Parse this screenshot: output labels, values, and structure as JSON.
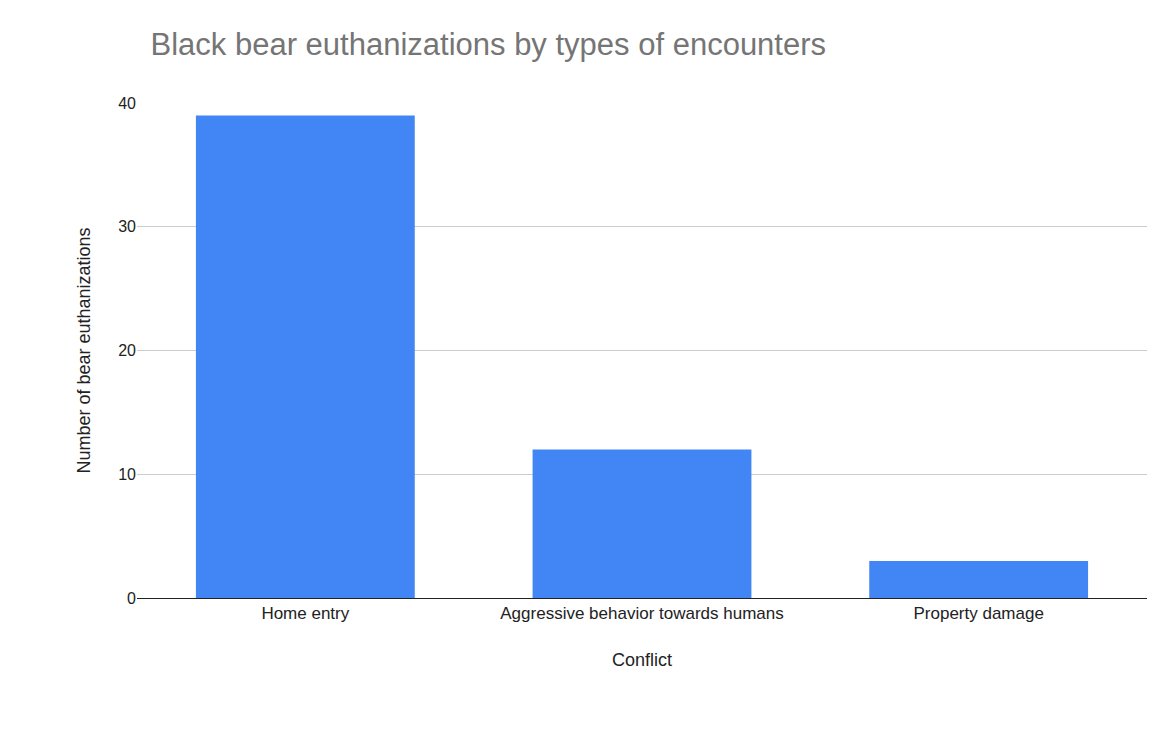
{
  "chart_data": {
    "type": "bar",
    "title": "Black bear euthanizations by types of encounters",
    "x_label": "Conflict",
    "y_label": "Number of bear euthanizations",
    "categories": [
      "Home entry",
      "Aggressive behavior towards humans",
      "Property damage"
    ],
    "values": [
      39,
      12,
      3
    ],
    "color": "#4285f4",
    "ylim": [
      0,
      40
    ],
    "yticks": [
      0,
      10,
      20,
      30,
      40
    ],
    "grid": true
  }
}
